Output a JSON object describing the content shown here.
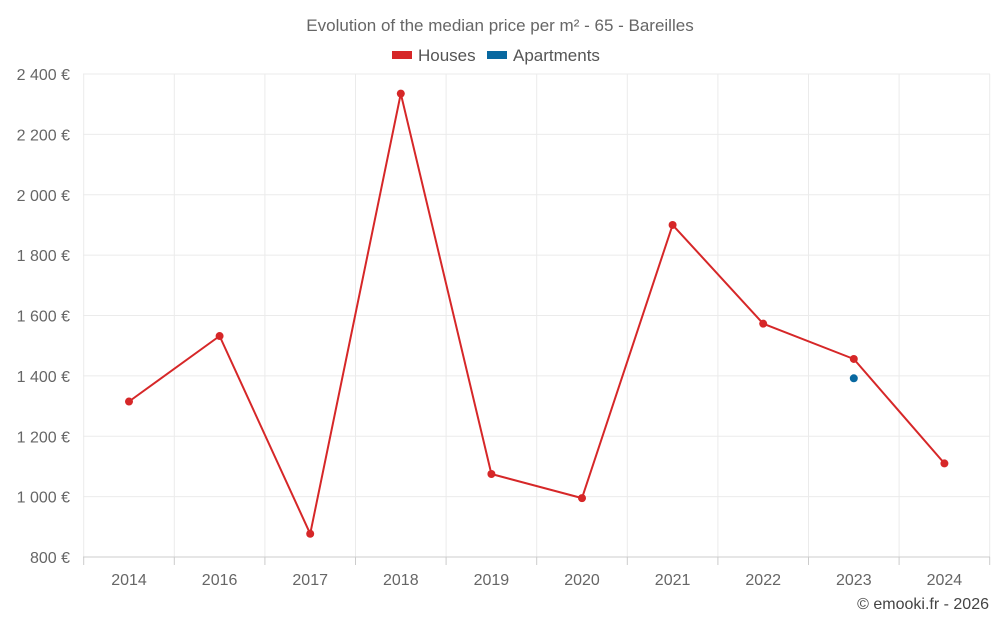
{
  "chart_data": {
    "type": "line",
    "title": "Evolution of the median price per m² - 65 - Bareilles",
    "categories": [
      "2014",
      "2016",
      "2017",
      "2018",
      "2019",
      "2020",
      "2021",
      "2022",
      "2023",
      "2024"
    ],
    "series": [
      {
        "name": "Houses",
        "color": "#d62728",
        "values": [
          1315,
          1532,
          877,
          2335,
          1075,
          995,
          1900,
          1573,
          1456,
          1110
        ]
      },
      {
        "name": "Apartments",
        "color": "#0868a0",
        "values": [
          null,
          null,
          null,
          null,
          null,
          null,
          null,
          null,
          1392,
          null
        ]
      }
    ],
    "y_ticks": [
      "800 €",
      "1 000 €",
      "1 200 €",
      "1 400 €",
      "1 600 €",
      "1 800 €",
      "2 000 €",
      "2 200 €",
      "2 400 €"
    ],
    "ylim": [
      800,
      2400
    ],
    "grid": true,
    "legend_position": "top-center",
    "credit": "© emooki.fr - 2026"
  }
}
